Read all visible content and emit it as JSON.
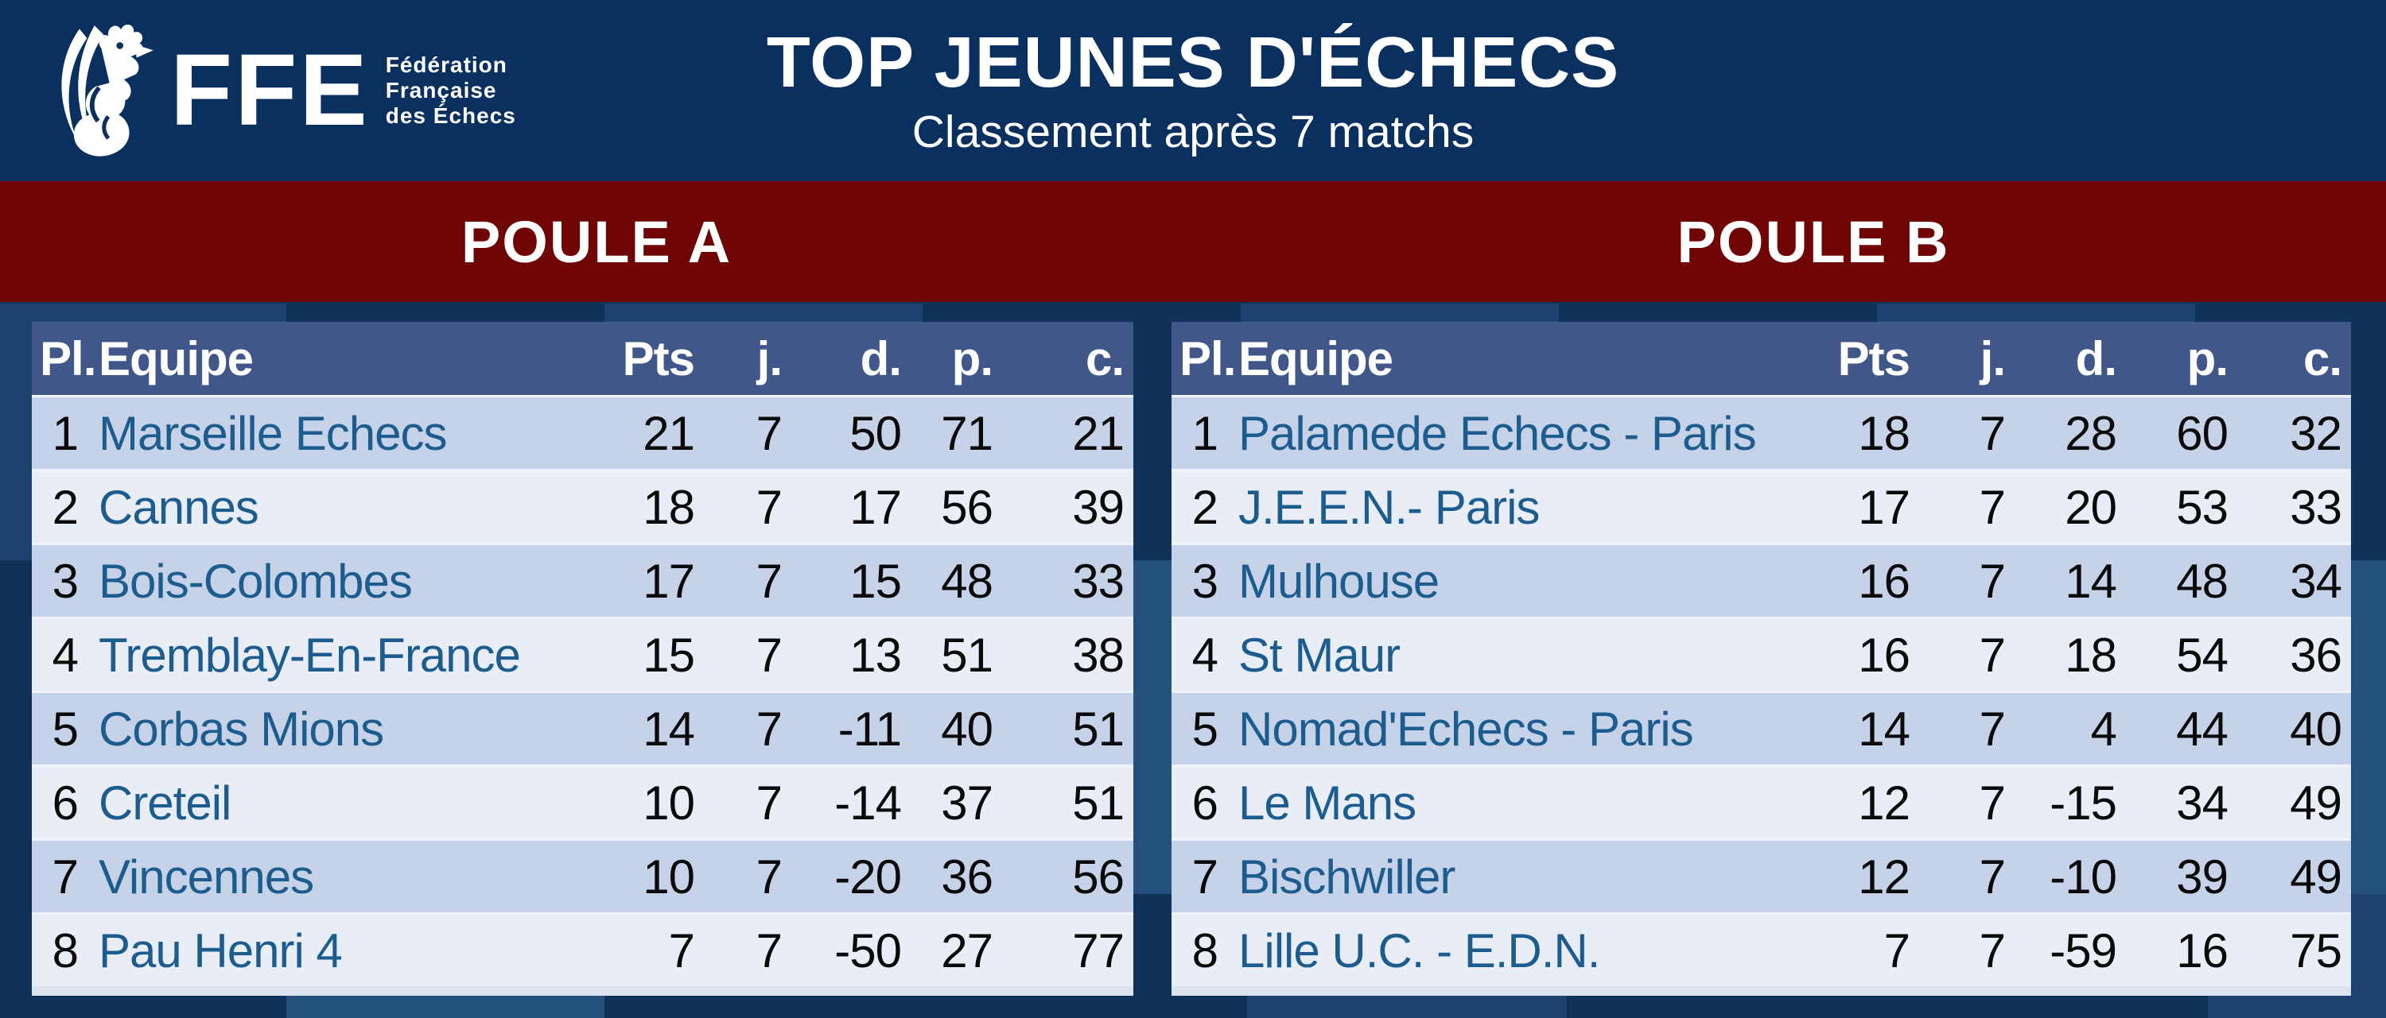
{
  "logo": {
    "icon": "rooster-icon",
    "acronym": "FFE",
    "org_lines": [
      "Fédération",
      "Française",
      "des Échecs"
    ]
  },
  "header": {
    "title": "TOP JEUNES D'ÉCHECS",
    "subtitle": "Classement après 7 matchs"
  },
  "chart_data": [
    {
      "type": "table",
      "title": "POULE A",
      "columns": [
        "Pl.",
        "Equipe",
        "Pts",
        "j.",
        "d.",
        "p.",
        "c."
      ],
      "rows": [
        [
          1,
          "Marseille Echecs",
          21,
          7,
          50,
          71,
          21
        ],
        [
          2,
          "Cannes",
          18,
          7,
          17,
          56,
          39
        ],
        [
          3,
          "Bois-Colombes",
          17,
          7,
          15,
          48,
          33
        ],
        [
          4,
          "Tremblay-En-France",
          15,
          7,
          13,
          51,
          38
        ],
        [
          5,
          "Corbas Mions",
          14,
          7,
          -11,
          40,
          51
        ],
        [
          6,
          "Creteil",
          10,
          7,
          -14,
          37,
          51
        ],
        [
          7,
          "Vincennes",
          10,
          7,
          -20,
          36,
          56
        ],
        [
          8,
          "Pau Henri 4",
          7,
          7,
          -50,
          27,
          77
        ]
      ]
    },
    {
      "type": "table",
      "title": "POULE B",
      "columns": [
        "Pl.",
        "Equipe",
        "Pts",
        "j.",
        "d.",
        "p.",
        "c."
      ],
      "rows": [
        [
          1,
          "Palamede Echecs - Paris",
          18,
          7,
          28,
          60,
          32
        ],
        [
          2,
          "J.E.E.N.- Paris",
          17,
          7,
          20,
          53,
          33
        ],
        [
          3,
          "Mulhouse",
          16,
          7,
          14,
          48,
          34
        ],
        [
          4,
          "St Maur",
          16,
          7,
          18,
          54,
          36
        ],
        [
          5,
          "Nomad'Echecs - Paris",
          14,
          7,
          4,
          44,
          40
        ],
        [
          6,
          "Le Mans",
          12,
          7,
          -15,
          34,
          49
        ],
        [
          7,
          "Bischwiller",
          12,
          7,
          -10,
          39,
          49
        ],
        [
          8,
          "Lille U.C. - E.D.N.",
          7,
          7,
          -59,
          16,
          75
        ]
      ]
    }
  ],
  "colors": {
    "header_navy": "#09305e",
    "banner_red": "#700505",
    "table_header_blue": "#41578a",
    "row_odd": "#c6d2e8",
    "row_even": "#e9edf6",
    "team_text": "#1d5c8e",
    "background_dark": "#0f3259",
    "tile_medium": "#1c4370",
    "tile_light": "#24507e"
  }
}
